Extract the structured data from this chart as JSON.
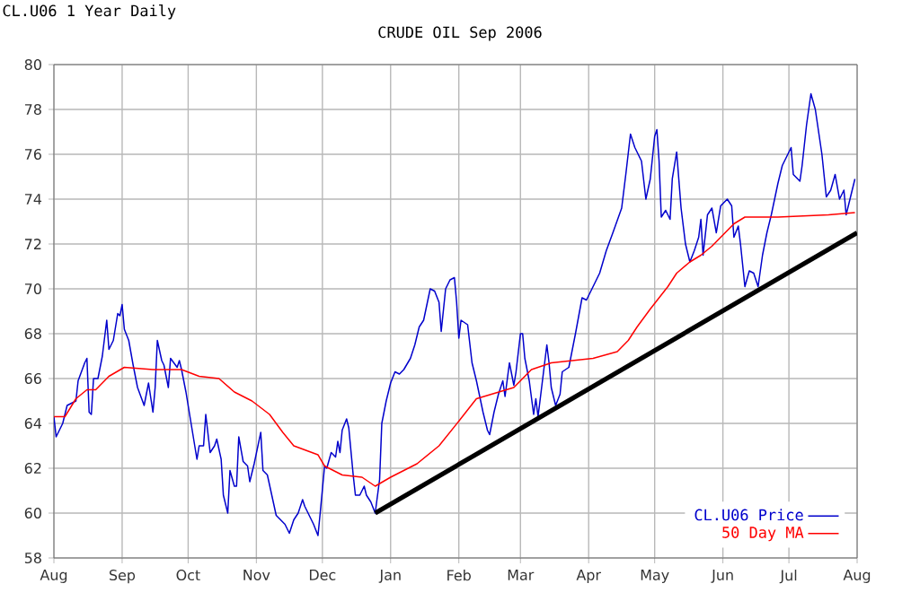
{
  "chart_data": {
    "type": "line",
    "title": "CRUDE OIL Sep 2006",
    "subtitle": "CL.U06 1 Year Daily",
    "xlim": [
      "2005-08-01",
      "2006-08-01"
    ],
    "xticks": [
      {
        "value": "2005-08-01",
        "label": "Aug"
      },
      {
        "value": "2005-09-01",
        "label": "Sep"
      },
      {
        "value": "2005-10-01",
        "label": "Oct"
      },
      {
        "value": "2005-11-01",
        "label": "Nov"
      },
      {
        "value": "2005-12-01",
        "label": "Dec"
      },
      {
        "value": "2006-01-01",
        "label": "Jan"
      },
      {
        "value": "2006-02-01",
        "label": "Feb"
      },
      {
        "value": "2006-03-01",
        "label": "Mar"
      },
      {
        "value": "2006-04-01",
        "label": "Apr"
      },
      {
        "value": "2006-05-01",
        "label": "May"
      },
      {
        "value": "2006-06-01",
        "label": "Jun"
      },
      {
        "value": "2006-07-01",
        "label": "Jul"
      },
      {
        "value": "2006-08-01",
        "label": "Aug"
      }
    ],
    "ylim": [
      58,
      80
    ],
    "yticks": [
      58,
      60,
      62,
      64,
      66,
      68,
      70,
      72,
      74,
      76,
      78,
      80
    ],
    "grid": true,
    "legend": "bottom right",
    "series": [
      {
        "name": "CL.U06 Price",
        "color": "#0000cc",
        "x": [
          "2005-08-01",
          "2005-08-02",
          "2005-08-05",
          "2005-08-07",
          "2005-08-11",
          "2005-08-12",
          "2005-08-15",
          "2005-08-16",
          "2005-08-17",
          "2005-08-18",
          "2005-08-19",
          "2005-08-21",
          "2005-08-23",
          "2005-08-25",
          "2005-08-26",
          "2005-08-28",
          "2005-08-30",
          "2005-08-31",
          "2005-09-01",
          "2005-09-02",
          "2005-09-04",
          "2005-09-06",
          "2005-09-08",
          "2005-09-11",
          "2005-09-13",
          "2005-09-15",
          "2005-09-16",
          "2005-09-17",
          "2005-09-19",
          "2005-09-20",
          "2005-09-22",
          "2005-09-23",
          "2005-09-26",
          "2005-09-27",
          "2005-09-28",
          "2005-09-30",
          "2005-10-04",
          "2005-10-05",
          "2005-10-06",
          "2005-10-08",
          "2005-10-09",
          "2005-10-11",
          "2005-10-13",
          "2005-10-14",
          "2005-10-16",
          "2005-10-17",
          "2005-10-19",
          "2005-10-20",
          "2005-10-22",
          "2005-10-23",
          "2005-10-24",
          "2005-10-26",
          "2005-10-28",
          "2005-10-29",
          "2005-10-31",
          "2005-11-03",
          "2005-11-04",
          "2005-11-06",
          "2005-11-08",
          "2005-11-10",
          "2005-11-12",
          "2005-11-14",
          "2005-11-16",
          "2005-11-18",
          "2005-11-20",
          "2005-11-22",
          "2005-11-23",
          "2005-11-25",
          "2005-11-27",
          "2005-11-29",
          "2005-11-30",
          "2005-12-02",
          "2005-12-03",
          "2005-12-05",
          "2005-12-07",
          "2005-12-08",
          "2005-12-09",
          "2005-12-10",
          "2005-12-12",
          "2005-12-13",
          "2005-12-15",
          "2005-12-16",
          "2005-12-18",
          "2005-12-20",
          "2005-12-21",
          "2005-12-23",
          "2005-12-25",
          "2005-12-27",
          "2005-12-28",
          "2005-12-30",
          "2006-01-01",
          "2006-01-03",
          "2006-01-05",
          "2006-01-07",
          "2006-01-10",
          "2006-01-12",
          "2006-01-14",
          "2006-01-16",
          "2006-01-19",
          "2006-01-21",
          "2006-01-23",
          "2006-01-24",
          "2006-01-26",
          "2006-01-28",
          "2006-01-30",
          "2006-01-31",
          "2006-02-01",
          "2006-02-02",
          "2006-02-05",
          "2006-02-07",
          "2006-02-09",
          "2006-02-12",
          "2006-02-14",
          "2006-02-15",
          "2006-02-17",
          "2006-02-19",
          "2006-02-21",
          "2006-02-22",
          "2006-02-24",
          "2006-02-26",
          "2006-02-27",
          "2006-03-01",
          "2006-03-02",
          "2006-03-03",
          "2006-03-05",
          "2006-03-07",
          "2006-03-08",
          "2006-03-09",
          "2006-03-11",
          "2006-03-13",
          "2006-03-14",
          "2006-03-15",
          "2006-03-17",
          "2006-03-19",
          "2006-03-20",
          "2006-03-23",
          "2006-03-26",
          "2006-03-29",
          "2006-03-31",
          "2006-04-03",
          "2006-04-06",
          "2006-04-09",
          "2006-04-12",
          "2006-04-16",
          "2006-04-18",
          "2006-04-20",
          "2006-04-22",
          "2006-04-25",
          "2006-04-27",
          "2006-04-29",
          "2006-05-01",
          "2006-05-02",
          "2006-05-03",
          "2006-05-04",
          "2006-05-06",
          "2006-05-08",
          "2006-05-09",
          "2006-05-11",
          "2006-05-13",
          "2006-05-15",
          "2006-05-17",
          "2006-05-19",
          "2006-05-21",
          "2006-05-22",
          "2006-05-23",
          "2006-05-25",
          "2006-05-27",
          "2006-05-29",
          "2006-05-31",
          "2006-06-03",
          "2006-06-05",
          "2006-06-06",
          "2006-06-08",
          "2006-06-09",
          "2006-06-11",
          "2006-06-13",
          "2006-06-15",
          "2006-06-17",
          "2006-06-19",
          "2006-06-21",
          "2006-06-23",
          "2006-06-26",
          "2006-06-28",
          "2006-07-02",
          "2006-07-03",
          "2006-07-06",
          "2006-07-07",
          "2006-07-09",
          "2006-07-11",
          "2006-07-13",
          "2006-07-16",
          "2006-07-18",
          "2006-07-20",
          "2006-07-22",
          "2006-07-24",
          "2006-07-26",
          "2006-07-27",
          "2006-07-29",
          "2006-07-31"
        ],
        "values": [
          64.3,
          63.4,
          64,
          64.8,
          65,
          65.9,
          66.7,
          66.9,
          64.5,
          64.4,
          66,
          66,
          67,
          68.6,
          67.3,
          67.7,
          68.9,
          68.8,
          69.3,
          68.2,
          67.7,
          66.6,
          65.6,
          64.8,
          65.8,
          64.5,
          65.6,
          67.7,
          66.8,
          66.6,
          65.6,
          66.9,
          66.5,
          66.8,
          66.4,
          65.4,
          63,
          62.4,
          63,
          63,
          64.4,
          62.7,
          63,
          63.3,
          62.4,
          60.8,
          60,
          61.9,
          61.2,
          61.2,
          63.4,
          62.3,
          62.1,
          61.4,
          62.2,
          63.6,
          61.9,
          61.7,
          60.8,
          59.9,
          59.7,
          59.5,
          59.1,
          59.7,
          60,
          60.6,
          60.3,
          59.9,
          59.5,
          59,
          60,
          62.1,
          62,
          62.7,
          62.5,
          63.2,
          62.7,
          63.7,
          64.2,
          63.8,
          61.7,
          60.8,
          60.8,
          61.2,
          60.8,
          60.5,
          60,
          61.5,
          64,
          65,
          65.8,
          66.3,
          66.2,
          66.4,
          66.9,
          67.5,
          68.3,
          68.6,
          70,
          69.9,
          69.4,
          68.1,
          70,
          70.4,
          70.5,
          69.4,
          67.8,
          68.6,
          68.4,
          66.7,
          65.9,
          64.5,
          63.7,
          63.5,
          64.5,
          65.3,
          65.9,
          65.2,
          66.7,
          65.7,
          66.3,
          68,
          68,
          66.9,
          65.9,
          64.4,
          65.1,
          64.3,
          65.9,
          67.5,
          66.7,
          65.6,
          64.8,
          65.3,
          66.3,
          66.5,
          68,
          69.6,
          69.5,
          70.1,
          70.7,
          71.7,
          72.5,
          73.6,
          75.2,
          76.9,
          76.3,
          75.7,
          74,
          74.9,
          76.8,
          77.1,
          75.7,
          73.2,
          73.5,
          73.1,
          74.9,
          76.1,
          73.6,
          72,
          71.2,
          71.7,
          72.3,
          73.1,
          71.5,
          73.3,
          73.6,
          72.5,
          73.7,
          74,
          73.7,
          72.3,
          72.8,
          72,
          70.1,
          70.8,
          70.7,
          70.1,
          71.5,
          72.5,
          73.3,
          74.7,
          75.5,
          76.3,
          75.1,
          74.8,
          75.5,
          77.3,
          78.7,
          78,
          76,
          74.1,
          74.4,
          75.1,
          74,
          74.4,
          73.3,
          74.1,
          74.9
        ]
      },
      {
        "name": "50 Day MA",
        "color": "#ff0000",
        "x": [
          "2005-08-01",
          "2005-08-06",
          "2005-08-11",
          "2005-08-16",
          "2005-08-20",
          "2005-08-26",
          "2005-09-02",
          "2005-09-15",
          "2005-09-28",
          "2005-10-06",
          "2005-10-15",
          "2005-10-22",
          "2005-10-30",
          "2005-11-07",
          "2005-11-13",
          "2005-11-18",
          "2005-11-29",
          "2005-12-02",
          "2005-12-10",
          "2005-12-19",
          "2005-12-25",
          "2006-01-01",
          "2006-01-13",
          "2006-01-23",
          "2006-02-01",
          "2006-02-09",
          "2006-02-26",
          "2006-03-06",
          "2006-03-15",
          "2006-04-03",
          "2006-04-14",
          "2006-04-19",
          "2006-04-23",
          "2006-04-29",
          "2006-05-03",
          "2006-05-07",
          "2006-05-11",
          "2006-05-17",
          "2006-05-22",
          "2006-05-27",
          "2006-06-01",
          "2006-06-06",
          "2006-06-11",
          "2006-06-26",
          "2006-07-19",
          "2006-07-31"
        ],
        "values": [
          64.3,
          64.3,
          65.1,
          65.5,
          65.5,
          66.1,
          66.5,
          66.4,
          66.4,
          66.1,
          66,
          65.4,
          65,
          64.4,
          63.6,
          63,
          62.6,
          62.1,
          61.7,
          61.6,
          61.2,
          61.6,
          62.2,
          63,
          64.1,
          65.1,
          65.6,
          66.4,
          66.7,
          66.9,
          67.2,
          67.7,
          68.3,
          69.1,
          69.6,
          70.1,
          70.7,
          71.2,
          71.5,
          71.9,
          72.4,
          72.9,
          73.2,
          73.2,
          73.3,
          73.4
        ]
      },
      {
        "color": "#000000",
        "x": [
          "2005-12-25",
          "2006-08-01"
        ],
        "values": [
          60,
          72.5
        ]
      }
    ]
  }
}
